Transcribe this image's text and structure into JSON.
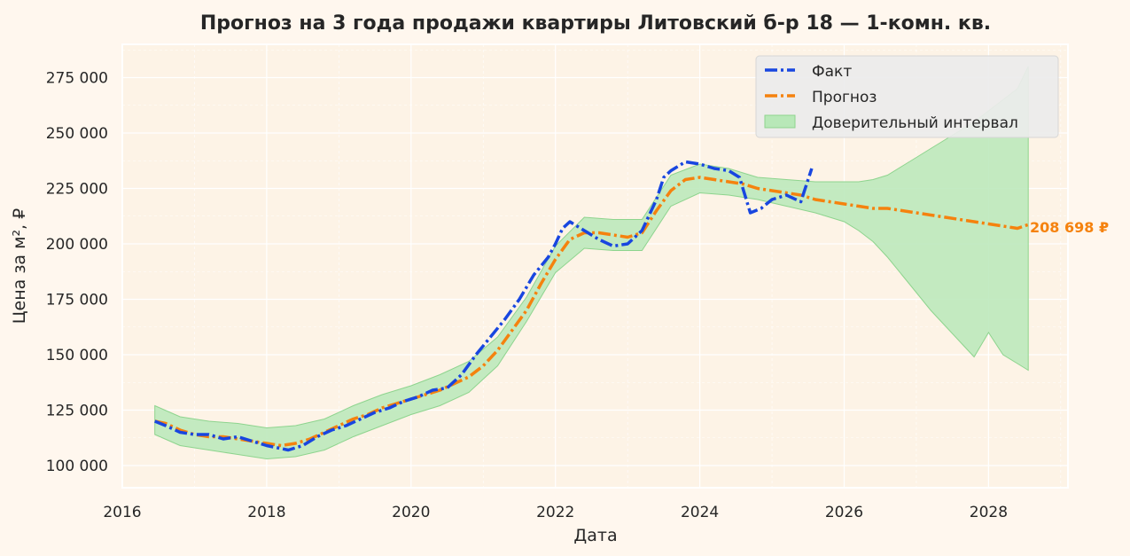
{
  "chart_data": {
    "type": "line",
    "title": "Прогноз на 3 года продажи квартиры  Литовский б-р 18 — 1-комн. кв.",
    "xlabel": "Дата",
    "ylabel": "Цена за м², ₽",
    "xlim": [
      2016.0,
      2029.1
    ],
    "ylim": [
      90000,
      290000
    ],
    "x_ticks": [
      2016,
      2018,
      2020,
      2022,
      2024,
      2026,
      2028
    ],
    "x_tick_labels": [
      "2016",
      "2018",
      "2020",
      "2022",
      "2024",
      "2026",
      "2028"
    ],
    "y_ticks": [
      100000,
      125000,
      150000,
      175000,
      200000,
      225000,
      250000,
      275000
    ],
    "y_tick_labels": [
      "100 000",
      "125 000",
      "150 000",
      "175 000",
      "200 000",
      "225 000",
      "250 000",
      "275 000"
    ],
    "grid": true,
    "legend_position": "top-right",
    "end_label": "208 698 ₽",
    "colors": {
      "fact": "#1846e0",
      "forecast": "#f5820e",
      "ci_fill": "#b8e8b8",
      "ci_edge": "#8ed48e",
      "plot_bg": "#fdf3e6",
      "page_bg": "#fff7ee",
      "grid": "#ffffff"
    },
    "series": [
      {
        "name": "Факт",
        "x": [
          2016.45,
          2016.6,
          2016.8,
          2017.0,
          2017.2,
          2017.4,
          2017.6,
          2017.8,
          2018.0,
          2018.15,
          2018.3,
          2018.5,
          2018.7,
          2018.9,
          2019.1,
          2019.3,
          2019.5,
          2019.7,
          2019.9,
          2020.1,
          2020.3,
          2020.5,
          2020.7,
          2020.9,
          2021.1,
          2021.3,
          2021.5,
          2021.7,
          2021.9,
          2022.0,
          2022.1,
          2022.2,
          2022.3,
          2022.45,
          2022.6,
          2022.8,
          2023.0,
          2023.2,
          2023.4,
          2023.5,
          2023.6,
          2023.8,
          2024.0,
          2024.2,
          2024.4,
          2024.55,
          2024.7,
          2024.85,
          2025.0,
          2025.2,
          2025.4,
          2025.55
        ],
        "y": [
          120000,
          118000,
          115000,
          114000,
          114000,
          112000,
          113000,
          111000,
          109000,
          108000,
          107000,
          109000,
          113000,
          116000,
          118000,
          121000,
          124000,
          126000,
          129000,
          131000,
          134000,
          135000,
          141000,
          150000,
          158000,
          166000,
          175000,
          186000,
          194000,
          200000,
          207000,
          210000,
          208000,
          205000,
          202000,
          199000,
          200000,
          206000,
          220000,
          230000,
          233000,
          237000,
          236000,
          234000,
          233000,
          230000,
          214000,
          216000,
          220000,
          222000,
          219000,
          234000
        ]
      },
      {
        "name": "Прогноз",
        "x": [
          2016.45,
          2016.6,
          2016.8,
          2017.0,
          2017.2,
          2017.4,
          2017.6,
          2017.8,
          2018.0,
          2018.2,
          2018.4,
          2018.6,
          2018.8,
          2019.0,
          2019.2,
          2019.4,
          2019.6,
          2019.8,
          2020.0,
          2020.2,
          2020.4,
          2020.6,
          2020.8,
          2021.0,
          2021.2,
          2021.4,
          2021.6,
          2021.8,
          2022.0,
          2022.2,
          2022.4,
          2022.6,
          2022.8,
          2023.0,
          2023.2,
          2023.4,
          2023.6,
          2023.8,
          2024.0,
          2024.2,
          2024.4,
          2024.6,
          2024.8,
          2025.0,
          2025.2,
          2025.4,
          2025.6,
          2025.8,
          2026.0,
          2026.2,
          2026.4,
          2026.6,
          2026.8,
          2027.0,
          2027.2,
          2027.4,
          2027.6,
          2027.8,
          2028.0,
          2028.2,
          2028.4,
          2028.55
        ],
        "y": [
          120000,
          119000,
          116000,
          114000,
          113000,
          113000,
          112000,
          111000,
          110000,
          109000,
          110000,
          112000,
          115000,
          118000,
          121000,
          123000,
          126000,
          128000,
          130000,
          132000,
          134000,
          137000,
          140000,
          145000,
          152000,
          161000,
          170000,
          182000,
          193000,
          202000,
          205000,
          205000,
          204000,
          203000,
          205000,
          215000,
          224000,
          229000,
          230000,
          229000,
          228000,
          227000,
          225000,
          224000,
          223000,
          222000,
          220000,
          219000,
          218000,
          217000,
          216000,
          216000,
          215000,
          214000,
          213000,
          212000,
          211000,
          210000,
          209000,
          208000,
          207000,
          208698
        ]
      },
      {
        "name": "Доверительный интервал",
        "x": [
          2016.45,
          2016.8,
          2017.2,
          2017.6,
          2018.0,
          2018.4,
          2018.8,
          2019.2,
          2019.6,
          2020.0,
          2020.4,
          2020.8,
          2021.2,
          2021.6,
          2022.0,
          2022.4,
          2022.8,
          2023.2,
          2023.6,
          2024.0,
          2024.4,
          2024.8,
          2025.2,
          2025.6,
          2025.8,
          2026.0,
          2026.2,
          2026.4,
          2026.6,
          2026.8,
          2027.0,
          2027.2,
          2027.4,
          2027.6,
          2027.8,
          2028.0,
          2028.2,
          2028.4,
          2028.55
        ],
        "upper": [
          127000,
          122000,
          120000,
          119000,
          117000,
          118000,
          121000,
          127000,
          132000,
          136000,
          141000,
          147000,
          158000,
          176000,
          199000,
          212000,
          211000,
          211000,
          231000,
          236000,
          234000,
          230000,
          229000,
          228000,
          228000,
          228000,
          228000,
          229000,
          231000,
          235000,
          239000,
          243000,
          247000,
          251000,
          255000,
          260000,
          265000,
          270000,
          280000
        ],
        "lower": [
          114000,
          109000,
          107000,
          105000,
          103000,
          104000,
          107000,
          113000,
          118000,
          123000,
          127000,
          133000,
          145000,
          165000,
          187000,
          198000,
          197000,
          197000,
          217000,
          223000,
          222000,
          220000,
          217000,
          214000,
          212000,
          210000,
          206000,
          201000,
          194000,
          186000,
          178000,
          170000,
          163000,
          156000,
          149000,
          160000,
          150000,
          146000,
          143000
        ]
      }
    ]
  }
}
